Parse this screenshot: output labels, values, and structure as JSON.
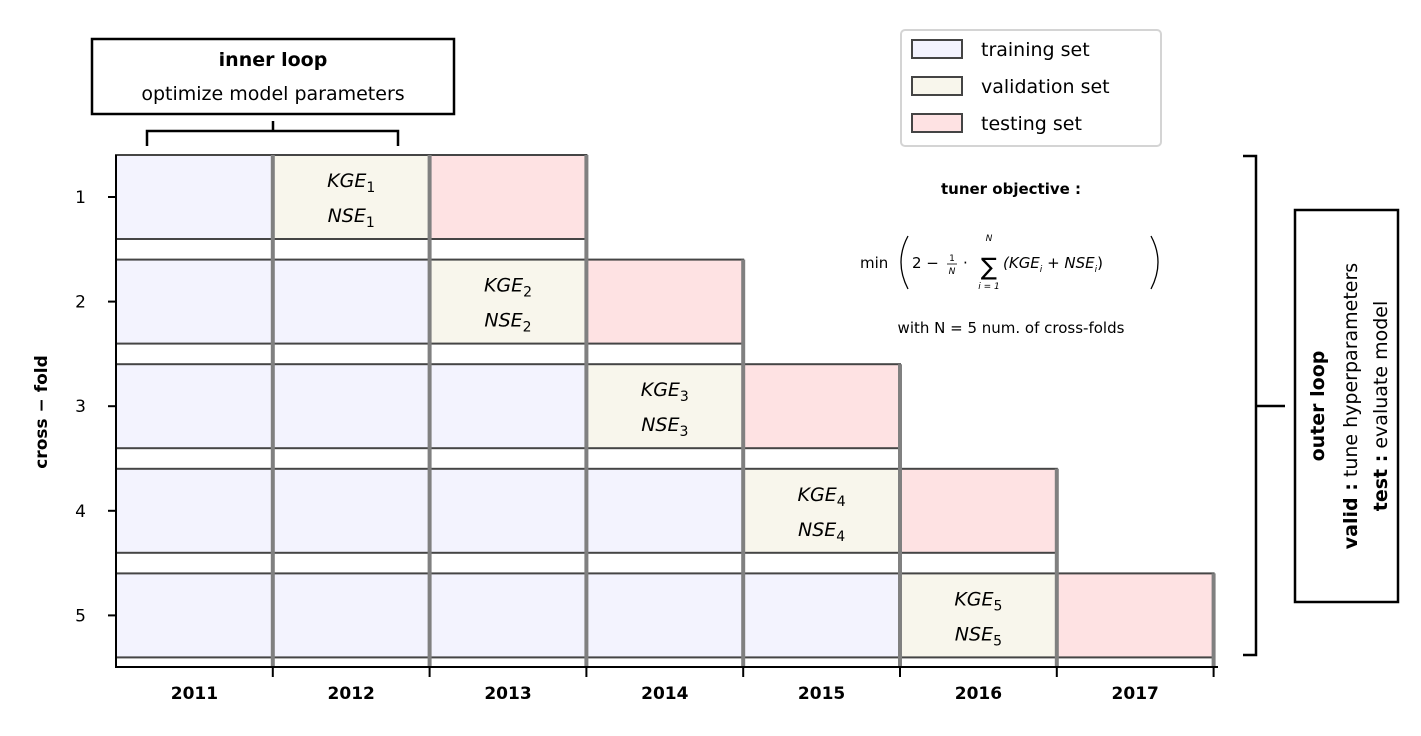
{
  "y_axis": {
    "label": "cross − fold",
    "ticks": [
      "1",
      "2",
      "3",
      "4",
      "5"
    ]
  },
  "x_axis": {
    "ticks": [
      "2011",
      "2012",
      "2013",
      "2014",
      "2015",
      "2016",
      "2017"
    ]
  },
  "legend": [
    {
      "label": "training set",
      "color": "#f3f3fe"
    },
    {
      "label": "validation set",
      "color": "#f8f6ec"
    },
    {
      "label": "testing set",
      "color": "#fee2e3"
    }
  ],
  "folds": [
    {
      "fold": "1",
      "validation_year": "2012",
      "testing_year": "2013",
      "kge": "KGE",
      "nse": "NSE",
      "index": "1"
    },
    {
      "fold": "2",
      "validation_year": "2013",
      "testing_year": "2014",
      "kge": "KGE",
      "nse": "NSE",
      "index": "2"
    },
    {
      "fold": "3",
      "validation_year": "2014",
      "testing_year": "2015",
      "kge": "KGE",
      "nse": "NSE",
      "index": "3"
    },
    {
      "fold": "4",
      "validation_year": "2015",
      "testing_year": "2016",
      "kge": "KGE",
      "nse": "NSE",
      "index": "4"
    },
    {
      "fold": "5",
      "validation_year": "2016",
      "testing_year": "2017",
      "kge": "KGE",
      "nse": "NSE",
      "index": "5"
    }
  ],
  "inner_loop": {
    "title": "inner loop",
    "subtitle": "optimize model parameters"
  },
  "tuner_objective": {
    "title": "tuner objective :",
    "min_text": "min",
    "expr_a": "2 −",
    "frac_num": "1",
    "frac_den": "N",
    "dot": "·",
    "sum_upper": "N",
    "sum_lower": "i = 1",
    "sum_body": "(KGE",
    "sum_mid": " + NSE",
    "sub_i": "i",
    "close_paren": ")",
    "note": "with N = 5 num. of cross-folds"
  },
  "outer_loop": {
    "title": "outer loop",
    "valid_label": "valid :",
    "valid_text": " tune hyperparameters",
    "test_label": "test :",
    "test_text": "   evaluate model"
  },
  "colors": {
    "training": "#f3f3fe",
    "validation": "#f8f6ec",
    "testing": "#fee2e3",
    "cell_edge": "#454545",
    "divider": "#808080"
  }
}
